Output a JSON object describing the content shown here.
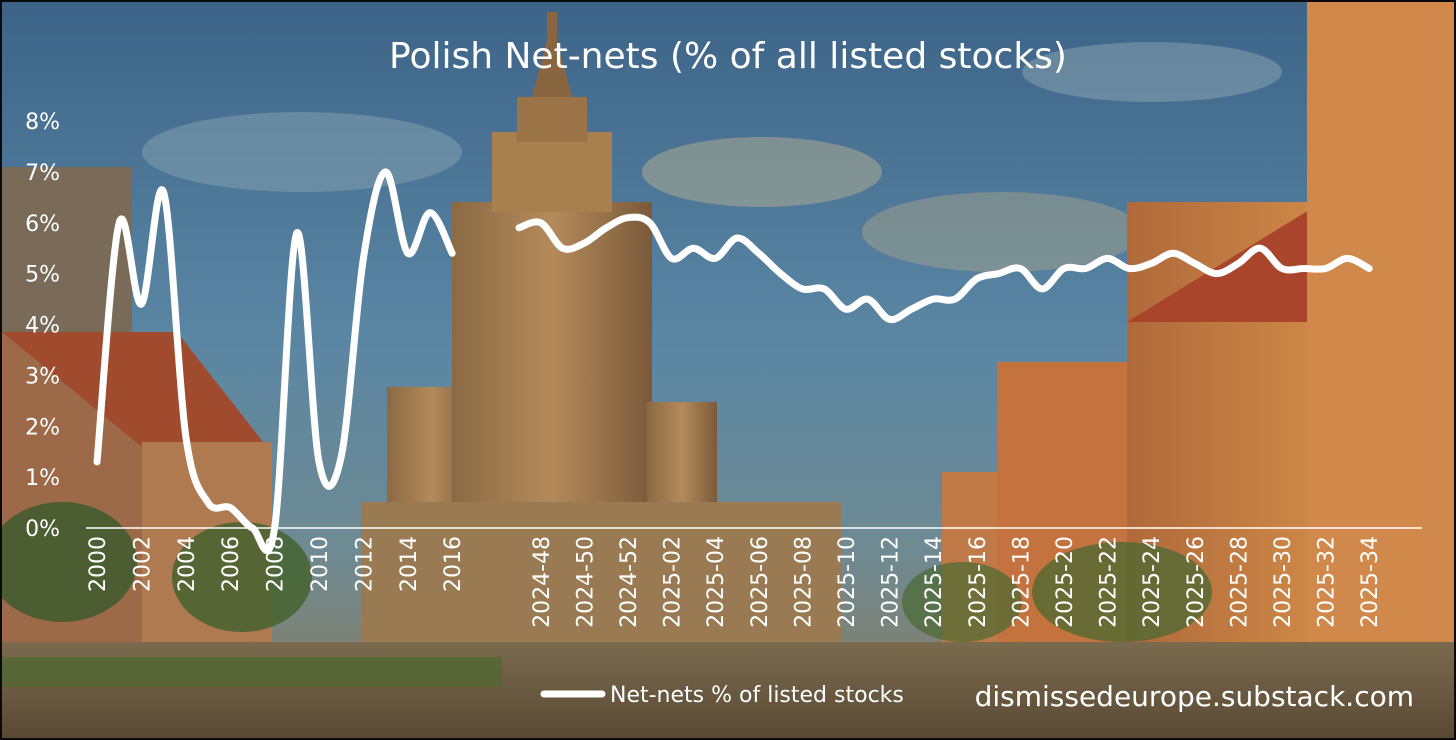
{
  "chart_data": {
    "type": "line",
    "title": "Polish Net-nets (% of all listed stocks)",
    "xlabel": "",
    "ylabel": "",
    "ylim": [
      0,
      8
    ],
    "y_ticks": [
      "0%",
      "1%",
      "2%",
      "3%",
      "4%",
      "5%",
      "6%",
      "7%",
      "8%"
    ],
    "grid": false,
    "legend_position": "bottom-center",
    "line_color": "#ffffff",
    "x_ticks": [
      "2000",
      "2002",
      "2004",
      "2006",
      "2008",
      "2010",
      "2012",
      "2014",
      "2016",
      "2024-48",
      "2024-50",
      "2024-52",
      "2025-02",
      "2025-04",
      "2025-06",
      "2025-08",
      "2025-10",
      "2025-12",
      "2025-14",
      "2025-16",
      "2025-18",
      "2025-20",
      "2025-22",
      "2025-24",
      "2025-26",
      "2025-28",
      "2025-30",
      "2025-32",
      "2025-34"
    ],
    "annual": {
      "x": [
        "2000",
        "2001",
        "2002",
        "2003",
        "2004",
        "2005",
        "2006",
        "2007",
        "2008",
        "2009",
        "2010",
        "2011",
        "2012",
        "2013",
        "2014",
        "2015",
        "2016"
      ],
      "values": [
        1.3,
        6.0,
        4.4,
        6.6,
        1.8,
        0.5,
        0.4,
        0.0,
        0.0,
        5.8,
        1.3,
        1.4,
        5.3,
        7.0,
        5.4,
        6.2,
        5.4
      ]
    },
    "weekly": {
      "x": [
        "2024-47",
        "2024-48",
        "2024-49",
        "2024-50",
        "2024-51",
        "2024-52",
        "2025-01",
        "2025-02",
        "2025-03",
        "2025-04",
        "2025-05",
        "2025-06",
        "2025-07",
        "2025-08",
        "2025-09",
        "2025-10",
        "2025-11",
        "2025-12",
        "2025-13",
        "2025-14",
        "2025-15",
        "2025-16",
        "2025-17",
        "2025-18",
        "2025-19",
        "2025-20",
        "2025-21",
        "2025-22",
        "2025-23",
        "2025-24",
        "2025-25",
        "2025-26",
        "2025-27",
        "2025-28",
        "2025-29",
        "2025-30",
        "2025-31",
        "2025-32",
        "2025-33",
        "2025-34"
      ],
      "values": [
        5.9,
        6.0,
        5.5,
        5.6,
        5.9,
        6.1,
        6.0,
        5.3,
        5.5,
        5.3,
        5.7,
        5.4,
        5.0,
        4.7,
        4.7,
        4.3,
        4.5,
        4.1,
        4.3,
        4.5,
        4.5,
        4.9,
        5.0,
        5.1,
        4.7,
        5.1,
        5.1,
        5.3,
        5.1,
        5.2,
        5.4,
        5.2,
        5.0,
        5.2,
        5.5,
        5.1,
        5.1,
        5.1,
        5.3,
        5.1
      ]
    },
    "series": [
      {
        "name": "Net-nets % of listed stocks"
      }
    ],
    "watermark": "dismissedeurope.substack.com"
  }
}
